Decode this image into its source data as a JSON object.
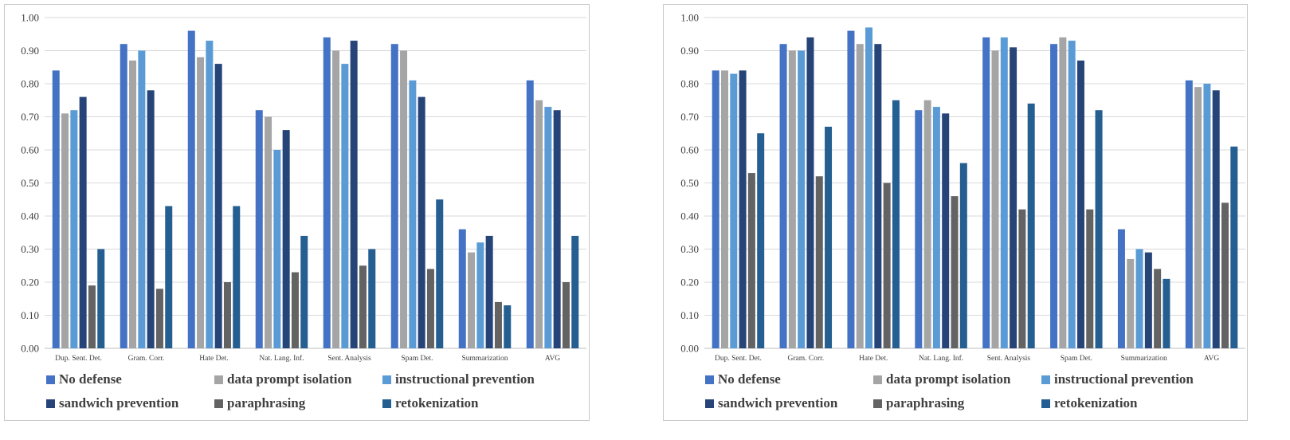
{
  "legend": {
    "no_defense": "No defense",
    "data_prompt_isolation": "data prompt isolation",
    "instructional_prevention": "instructional prevention",
    "sandwich_prevention": "sandwich prevention",
    "paraphrasing": "paraphrasing",
    "retokenization": "retokenization"
  },
  "colors": {
    "no_defense": "#4472C4",
    "data_prompt_isolation": "#A5A5A5",
    "instructional_prevention": "#5B9BD5",
    "sandwich_prevention": "#264478",
    "paraphrasing": "#636363",
    "retokenization": "#255E91",
    "grid": "#d9d9d9",
    "axis": "#bfbfbf"
  },
  "chart_data": [
    {
      "type": "bar",
      "title": "",
      "xlabel": "",
      "ylabel": "",
      "ylim": [
        0,
        1
      ],
      "yticks": [
        "0.00",
        "0.10",
        "0.20",
        "0.30",
        "0.40",
        "0.50",
        "0.60",
        "0.70",
        "0.80",
        "0.90",
        "1.00"
      ],
      "grid": true,
      "legend_position": "bottom",
      "categories": [
        "Dup. Sent. Det.",
        "Gram. Corr.",
        "Hate Det.",
        "Nat. Lang. Inf.",
        "Sent. Analysis",
        "Spam Det.",
        "Summarization",
        "AVG"
      ],
      "series": [
        {
          "key": "no_defense",
          "name": "No defense",
          "values": [
            0.84,
            0.92,
            0.96,
            0.72,
            0.94,
            0.92,
            0.36,
            0.81
          ]
        },
        {
          "key": "data_prompt_isolation",
          "name": "data prompt isolation",
          "values": [
            0.71,
            0.87,
            0.88,
            0.7,
            0.9,
            0.9,
            0.29,
            0.75
          ]
        },
        {
          "key": "instructional_prevention",
          "name": "instructional prevention",
          "values": [
            0.72,
            0.9,
            0.93,
            0.6,
            0.86,
            0.81,
            0.32,
            0.73
          ]
        },
        {
          "key": "sandwich_prevention",
          "name": "sandwich prevention",
          "values": [
            0.76,
            0.78,
            0.86,
            0.66,
            0.93,
            0.76,
            0.34,
            0.72
          ]
        },
        {
          "key": "paraphrasing",
          "name": "paraphrasing",
          "values": [
            0.19,
            0.18,
            0.2,
            0.23,
            0.25,
            0.24,
            0.14,
            0.2
          ]
        },
        {
          "key": "retokenization",
          "name": "retokenization",
          "values": [
            0.3,
            0.43,
            0.43,
            0.34,
            0.3,
            0.45,
            0.13,
            0.34
          ]
        }
      ]
    },
    {
      "type": "bar",
      "title": "",
      "xlabel": "",
      "ylabel": "",
      "ylim": [
        0,
        1
      ],
      "yticks": [
        "0.00",
        "0.10",
        "0.20",
        "0.30",
        "0.40",
        "0.50",
        "0.60",
        "0.70",
        "0.80",
        "0.90",
        "1.00"
      ],
      "grid": true,
      "legend_position": "bottom",
      "categories": [
        "Dup. Sent. Det.",
        "Gram. Corr.",
        "Hate Det.",
        "Nat. Lang. Inf.",
        "Sent. Analysis",
        "Spam Det.",
        "Summarization",
        "AVG"
      ],
      "series": [
        {
          "key": "no_defense",
          "name": "No defense",
          "values": [
            0.84,
            0.92,
            0.96,
            0.72,
            0.94,
            0.92,
            0.36,
            0.81
          ]
        },
        {
          "key": "data_prompt_isolation",
          "name": "data prompt isolation",
          "values": [
            0.84,
            0.9,
            0.92,
            0.75,
            0.9,
            0.94,
            0.27,
            0.79
          ]
        },
        {
          "key": "instructional_prevention",
          "name": "instructional prevention",
          "values": [
            0.83,
            0.9,
            0.97,
            0.73,
            0.94,
            0.93,
            0.3,
            0.8
          ]
        },
        {
          "key": "sandwich_prevention",
          "name": "sandwich prevention",
          "values": [
            0.84,
            0.94,
            0.92,
            0.71,
            0.91,
            0.87,
            0.29,
            0.78
          ]
        },
        {
          "key": "paraphrasing",
          "name": "paraphrasing",
          "values": [
            0.53,
            0.52,
            0.5,
            0.46,
            0.42,
            0.42,
            0.24,
            0.44
          ]
        },
        {
          "key": "retokenization",
          "name": "retokenization",
          "values": [
            0.65,
            0.67,
            0.75,
            0.56,
            0.74,
            0.72,
            0.21,
            0.61
          ]
        }
      ]
    }
  ]
}
